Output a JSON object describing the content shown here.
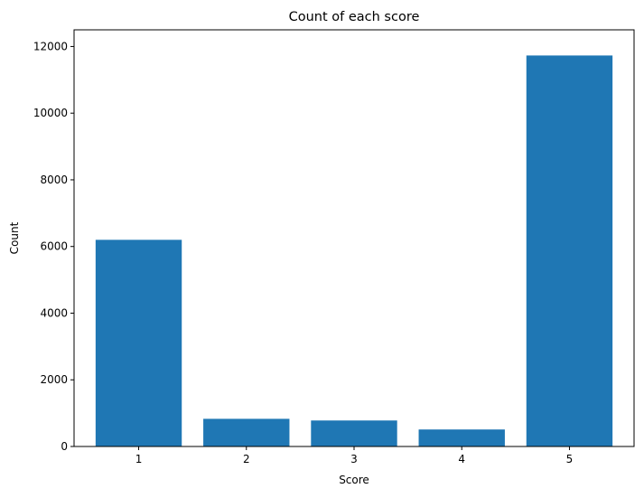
{
  "chart_data": {
    "type": "bar",
    "title": "Count of each score",
    "xlabel": "Score",
    "ylabel": "Count",
    "categories": [
      "1",
      "2",
      "3",
      "4",
      "5"
    ],
    "values": [
      6200,
      830,
      780,
      510,
      11730
    ],
    "ylim": [
      0,
      12500
    ],
    "yticks": [
      0,
      2000,
      4000,
      6000,
      8000,
      10000,
      12000
    ],
    "grid": false,
    "legend": "none",
    "bar_color": "#1f77b4"
  }
}
